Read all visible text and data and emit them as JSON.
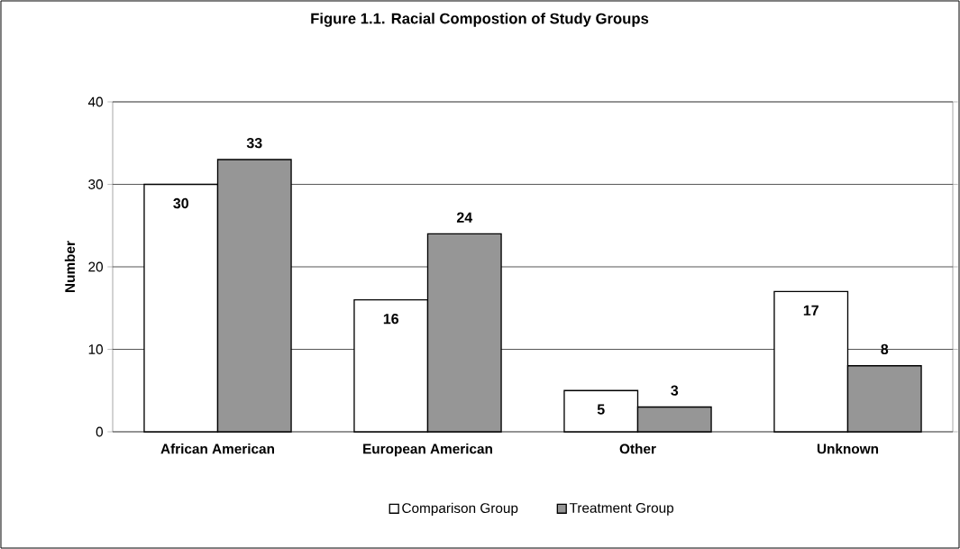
{
  "chart_data": {
    "type": "bar",
    "title": "Figure 1.1.  Racial Compostion of Study Groups",
    "ylabel": "Number",
    "categories": [
      "African American",
      "European American",
      "Other",
      "Unknown"
    ],
    "series": [
      {
        "name": "Comparison Group",
        "color": "#ffffff",
        "values": [
          30,
          16,
          5,
          17
        ]
      },
      {
        "name": "Treatment Group",
        "color": "#969696",
        "values": [
          33,
          24,
          3,
          8
        ]
      }
    ],
    "ylim": [
      0,
      40
    ],
    "yticks": [
      0,
      10,
      20,
      30,
      40
    ],
    "grid": "y",
    "legend": "bottom",
    "data_labels": true
  }
}
